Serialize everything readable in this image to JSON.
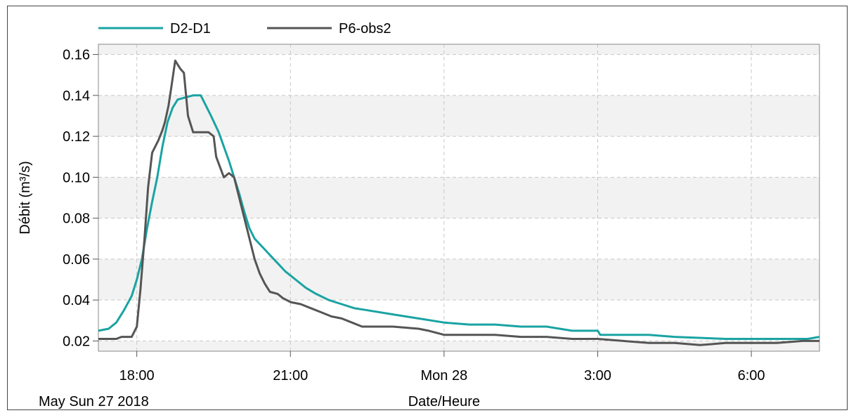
{
  "chart_data": {
    "type": "line",
    "title": "",
    "xlabel": "Date/Heure",
    "ylabel": "Débit (m³/s)",
    "date_label": "May Sun 27 2018",
    "x_unit": "hours since 2018-05-27 00:00",
    "xlim": [
      17.25,
      31.33
    ],
    "ylim": [
      0.015,
      0.165
    ],
    "x_ticks": [
      {
        "x": 18,
        "label": "18:00"
      },
      {
        "x": 21,
        "label": "21:00"
      },
      {
        "x": 24,
        "label": "Mon 28"
      },
      {
        "x": 27,
        "label": "3:00"
      },
      {
        "x": 30,
        "label": "6:00"
      }
    ],
    "y_ticks": [
      {
        "y": 0.02,
        "label": "0.02"
      },
      {
        "y": 0.04,
        "label": "0.04"
      },
      {
        "y": 0.06,
        "label": "0.06"
      },
      {
        "y": 0.08,
        "label": "0.08"
      },
      {
        "y": 0.1,
        "label": "0.10"
      },
      {
        "y": 0.12,
        "label": "0.12"
      },
      {
        "y": 0.14,
        "label": "0.14"
      },
      {
        "y": 0.16,
        "label": "0.16"
      }
    ],
    "grid": true,
    "legend_position": "top-left",
    "series": [
      {
        "name": "D2-D1",
        "color": "#1aa3a3",
        "points": [
          [
            17.25,
            0.025
          ],
          [
            17.45,
            0.026
          ],
          [
            17.6,
            0.029
          ],
          [
            17.75,
            0.035
          ],
          [
            17.9,
            0.042
          ],
          [
            18.0,
            0.05
          ],
          [
            18.1,
            0.06
          ],
          [
            18.2,
            0.075
          ],
          [
            18.3,
            0.088
          ],
          [
            18.4,
            0.1
          ],
          [
            18.5,
            0.115
          ],
          [
            18.6,
            0.127
          ],
          [
            18.7,
            0.134
          ],
          [
            18.8,
            0.138
          ],
          [
            18.95,
            0.139
          ],
          [
            19.1,
            0.14
          ],
          [
            19.25,
            0.14
          ],
          [
            19.35,
            0.135
          ],
          [
            19.45,
            0.13
          ],
          [
            19.6,
            0.122
          ],
          [
            19.7,
            0.115
          ],
          [
            19.8,
            0.108
          ],
          [
            19.9,
            0.1
          ],
          [
            20.0,
            0.092
          ],
          [
            20.1,
            0.083
          ],
          [
            20.2,
            0.075
          ],
          [
            20.3,
            0.07
          ],
          [
            20.45,
            0.066
          ],
          [
            20.6,
            0.062
          ],
          [
            20.75,
            0.058
          ],
          [
            20.9,
            0.054
          ],
          [
            21.1,
            0.05
          ],
          [
            21.3,
            0.046
          ],
          [
            21.5,
            0.043
          ],
          [
            21.75,
            0.04
          ],
          [
            22.0,
            0.038
          ],
          [
            22.25,
            0.036
          ],
          [
            22.5,
            0.035
          ],
          [
            23.0,
            0.033
          ],
          [
            23.5,
            0.031
          ],
          [
            24.0,
            0.029
          ],
          [
            24.5,
            0.028
          ],
          [
            25.0,
            0.028
          ],
          [
            25.5,
            0.027
          ],
          [
            26.0,
            0.027
          ],
          [
            26.5,
            0.025
          ],
          [
            27.0,
            0.025
          ],
          [
            27.05,
            0.023
          ],
          [
            28.0,
            0.023
          ],
          [
            28.5,
            0.022
          ],
          [
            29.5,
            0.021
          ],
          [
            30.5,
            0.021
          ],
          [
            31.1,
            0.021
          ],
          [
            31.33,
            0.022
          ]
        ]
      },
      {
        "name": "P6-obs2",
        "color": "#555555",
        "points": [
          [
            17.25,
            0.021
          ],
          [
            17.6,
            0.021
          ],
          [
            17.7,
            0.022
          ],
          [
            17.9,
            0.022
          ],
          [
            18.0,
            0.027
          ],
          [
            18.07,
            0.045
          ],
          [
            18.15,
            0.07
          ],
          [
            18.22,
            0.095
          ],
          [
            18.3,
            0.112
          ],
          [
            18.42,
            0.118
          ],
          [
            18.5,
            0.123
          ],
          [
            18.55,
            0.127
          ],
          [
            18.62,
            0.135
          ],
          [
            18.68,
            0.145
          ],
          [
            18.75,
            0.157
          ],
          [
            18.85,
            0.153
          ],
          [
            18.92,
            0.151
          ],
          [
            19.0,
            0.13
          ],
          [
            19.1,
            0.122
          ],
          [
            19.2,
            0.122
          ],
          [
            19.4,
            0.122
          ],
          [
            19.5,
            0.12
          ],
          [
            19.55,
            0.11
          ],
          [
            19.7,
            0.1
          ],
          [
            19.8,
            0.102
          ],
          [
            19.9,
            0.1
          ],
          [
            20.0,
            0.09
          ],
          [
            20.1,
            0.08
          ],
          [
            20.2,
            0.07
          ],
          [
            20.3,
            0.06
          ],
          [
            20.4,
            0.053
          ],
          [
            20.5,
            0.048
          ],
          [
            20.6,
            0.044
          ],
          [
            20.75,
            0.043
          ],
          [
            20.85,
            0.041
          ],
          [
            21.0,
            0.039
          ],
          [
            21.2,
            0.038
          ],
          [
            21.4,
            0.036
          ],
          [
            21.6,
            0.034
          ],
          [
            21.8,
            0.032
          ],
          [
            22.0,
            0.031
          ],
          [
            22.2,
            0.029
          ],
          [
            22.4,
            0.027
          ],
          [
            23.0,
            0.027
          ],
          [
            23.5,
            0.026
          ],
          [
            23.7,
            0.025
          ],
          [
            24.0,
            0.023
          ],
          [
            24.5,
            0.023
          ],
          [
            25.0,
            0.023
          ],
          [
            25.5,
            0.022
          ],
          [
            26.0,
            0.022
          ],
          [
            26.5,
            0.021
          ],
          [
            27.0,
            0.021
          ],
          [
            27.5,
            0.02
          ],
          [
            28.0,
            0.019
          ],
          [
            28.5,
            0.019
          ],
          [
            29.0,
            0.018
          ],
          [
            29.5,
            0.019
          ],
          [
            30.0,
            0.019
          ],
          [
            30.5,
            0.019
          ],
          [
            31.0,
            0.02
          ],
          [
            31.33,
            0.02
          ]
        ]
      }
    ]
  }
}
